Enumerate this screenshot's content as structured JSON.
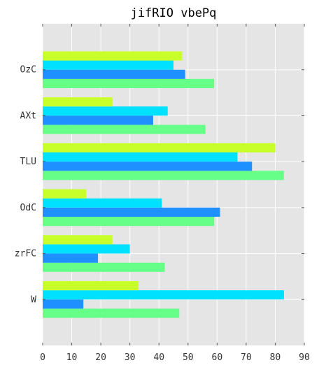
{
  "chart_data": {
    "type": "bar",
    "orientation": "horizontal",
    "title": "jifRIO vbePq",
    "xlabel": "",
    "ylabel": "",
    "categories": [
      "W",
      "zrFC",
      "OdC",
      "TLU",
      "AXt",
      "OzC"
    ],
    "xlim": [
      0,
      90
    ],
    "xticks": [
      0,
      10,
      20,
      30,
      40,
      50,
      60,
      70,
      80,
      90
    ],
    "grid": true,
    "series": [
      {
        "color": "#66ff88",
        "values": [
          47,
          42,
          59,
          83,
          56,
          59
        ]
      },
      {
        "color": "#1e90ff",
        "values": [
          14,
          19,
          61,
          72,
          38,
          49
        ]
      },
      {
        "color": "#00e0ff",
        "values": [
          83,
          30,
          41,
          67,
          43,
          45
        ]
      },
      {
        "color": "#c8ff2a",
        "values": [
          33,
          24,
          15,
          80,
          24,
          48
        ]
      }
    ],
    "colors": {
      "plot_background": "#e5e5e5",
      "grid": "#ffffff"
    }
  }
}
